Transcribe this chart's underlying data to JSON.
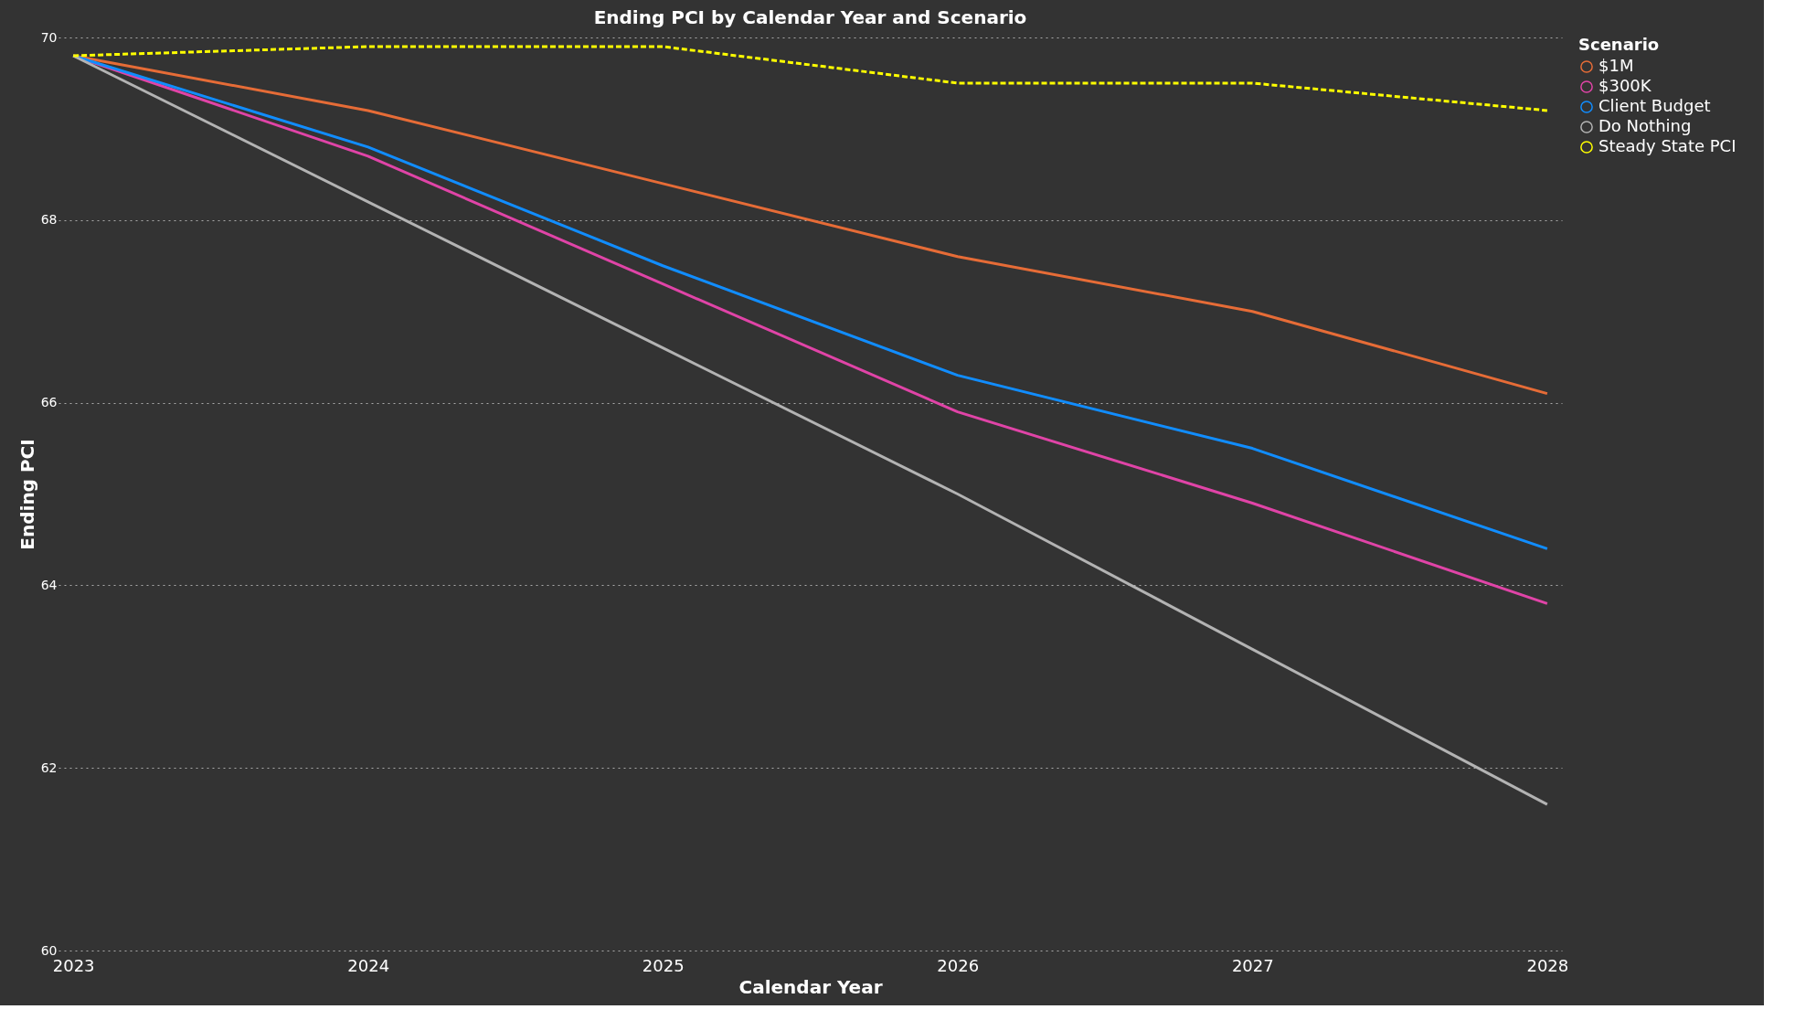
{
  "chart_data": {
    "type": "line",
    "title": "Ending PCI by Calendar Year and Scenario",
    "xlabel": "Calendar Year",
    "ylabel": "Ending PCI",
    "legend_title": "Scenario",
    "categories": [
      "2023",
      "2024",
      "2025",
      "2026",
      "2027",
      "2028"
    ],
    "series": [
      {
        "name": "$1M",
        "color": "#e66c37",
        "values": [
          69.8,
          69.2,
          68.4,
          67.6,
          67.0,
          66.1
        ]
      },
      {
        "name": "$300K",
        "color": "#e044a7",
        "values": [
          69.8,
          68.7,
          67.3,
          65.9,
          64.9,
          63.8
        ]
      },
      {
        "name": "Client Budget",
        "color": "#118dff",
        "values": [
          69.8,
          68.8,
          67.5,
          66.3,
          65.5,
          64.4
        ]
      },
      {
        "name": "Do Nothing",
        "color": "#b3b3b3",
        "values": [
          69.8,
          68.2,
          66.6,
          65.0,
          63.3,
          61.6
        ]
      },
      {
        "name": "Steady State PCI",
        "color": "#ffff00",
        "line_style": "dashed",
        "values": [
          69.8,
          69.9,
          69.9,
          69.5,
          69.5,
          69.2
        ]
      }
    ],
    "ylim": [
      60,
      70
    ],
    "yticks": [
      60,
      62,
      64,
      66,
      68,
      70
    ],
    "grid": "y",
    "legend": "right",
    "line_style": "solid",
    "marker": "none"
  }
}
